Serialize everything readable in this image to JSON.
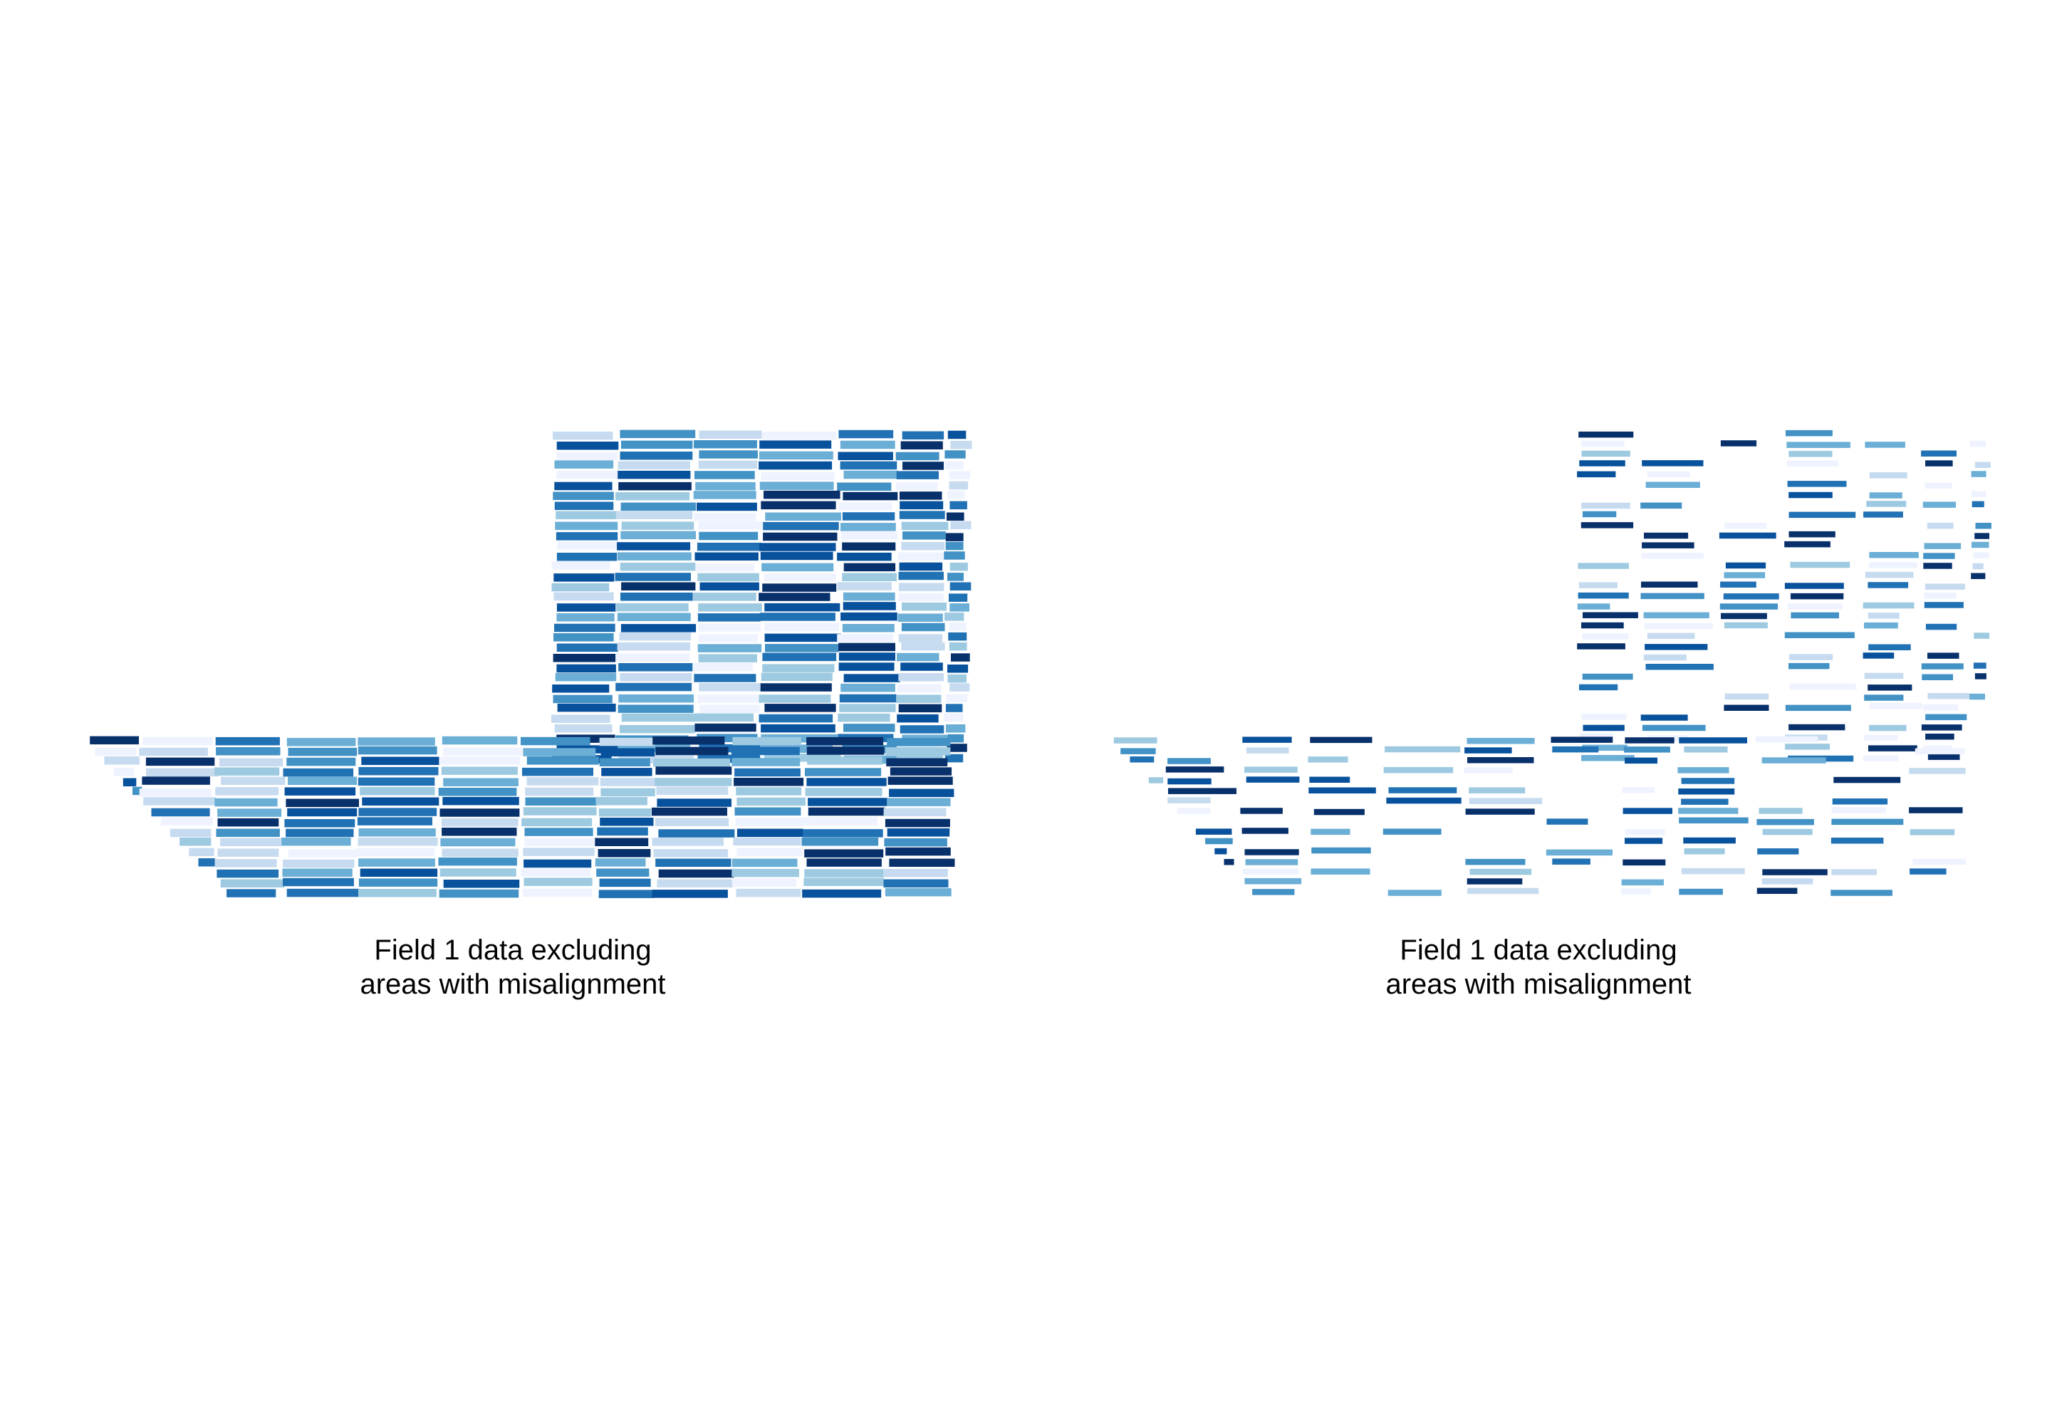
{
  "panels": [
    {
      "id": "left",
      "caption_line1": "Field 1 data excluding",
      "caption_line2": "areas with misalignment",
      "pass_retention": 1.0
    },
    {
      "id": "right",
      "caption_line1": "Field 1 data excluding",
      "caption_line2": "areas with misalignment",
      "pass_retention": 0.55
    }
  ],
  "colors": {
    "palette": [
      "#eff3ff",
      "#c6dbef",
      "#9ecae1",
      "#6baed6",
      "#4292c6",
      "#2171b5",
      "#08519c",
      "#08306b"
    ],
    "background": "#ffffff"
  },
  "legend": null
}
